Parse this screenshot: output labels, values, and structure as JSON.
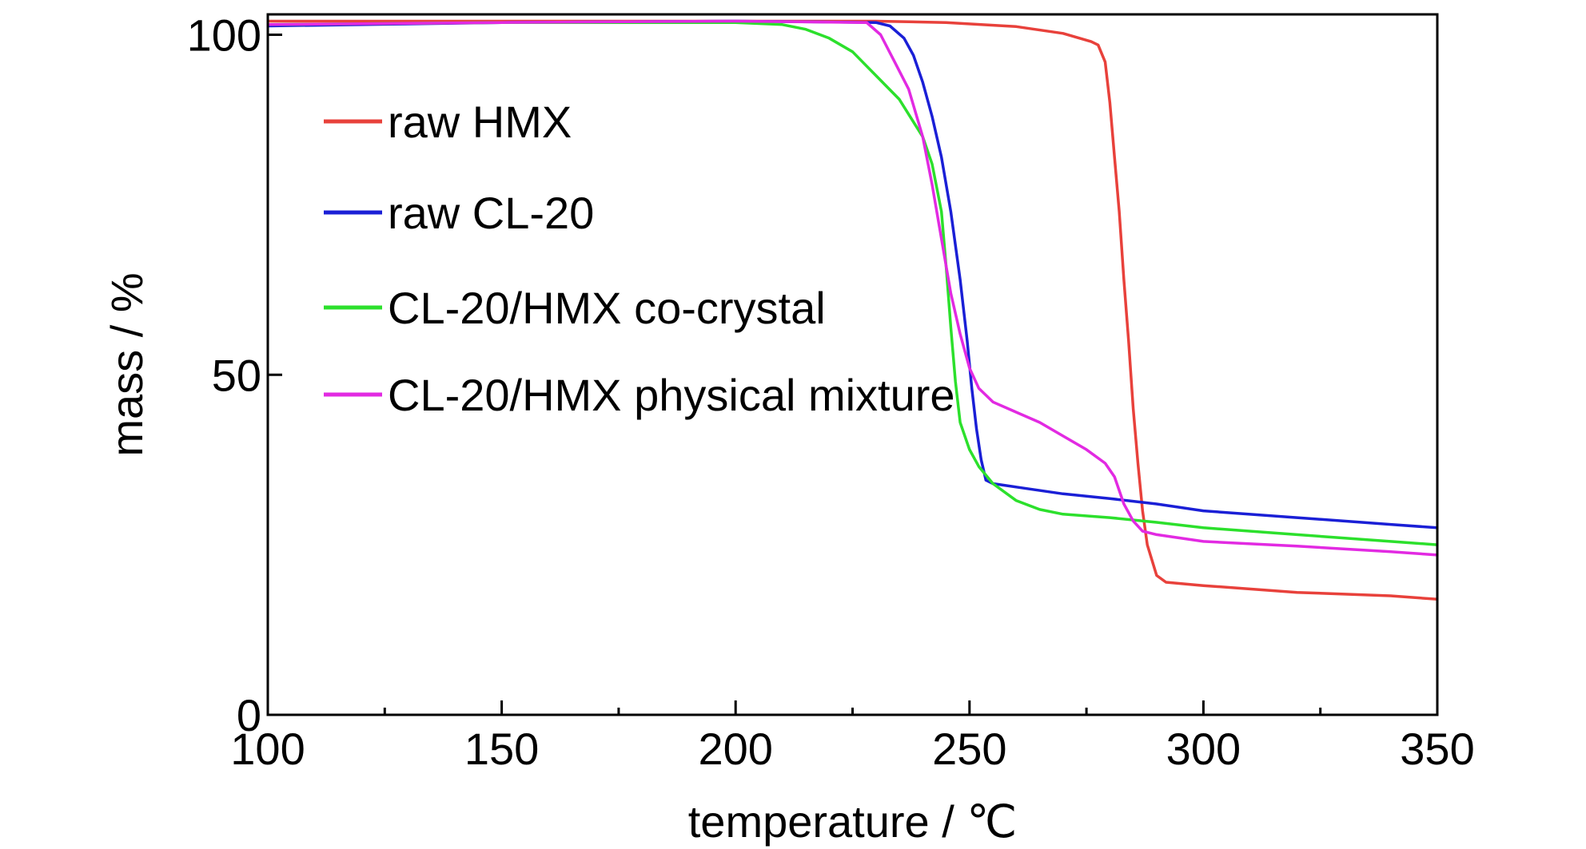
{
  "chart_data": {
    "type": "line",
    "xlabel": "temperature / ℃",
    "ylabel": "mass / %",
    "xlim": [
      100,
      350
    ],
    "ylim": [
      0,
      103
    ],
    "x_ticks": [
      100,
      150,
      200,
      250,
      300,
      350
    ],
    "x_minor_ticks": [
      125,
      175,
      225,
      275,
      325
    ],
    "y_ticks": [
      0,
      50,
      100
    ],
    "grid": false,
    "legend_position": "upper-left",
    "series": [
      {
        "name": "raw HMX",
        "color": "#e8413b",
        "points": [
          [
            100,
            102
          ],
          [
            150,
            102
          ],
          [
            200,
            102
          ],
          [
            230,
            102
          ],
          [
            245,
            101.8
          ],
          [
            260,
            101.2
          ],
          [
            270,
            100.2
          ],
          [
            276,
            99
          ],
          [
            277.5,
            98.5
          ],
          [
            279,
            96
          ],
          [
            280,
            90
          ],
          [
            281,
            82
          ],
          [
            282,
            74
          ],
          [
            283,
            64
          ],
          [
            284,
            55
          ],
          [
            285,
            45
          ],
          [
            286,
            37
          ],
          [
            287,
            30
          ],
          [
            288,
            25
          ],
          [
            290,
            20.5
          ],
          [
            292,
            19.5
          ],
          [
            300,
            19
          ],
          [
            320,
            18
          ],
          [
            340,
            17.5
          ],
          [
            350,
            17
          ]
        ]
      },
      {
        "name": "raw CL-20",
        "color": "#1a1fd6",
        "points": [
          [
            100,
            101.3
          ],
          [
            150,
            101.8
          ],
          [
            200,
            102
          ],
          [
            230,
            101.8
          ],
          [
            233,
            101.3
          ],
          [
            236,
            99.5
          ],
          [
            238,
            97
          ],
          [
            240,
            93
          ],
          [
            242,
            88
          ],
          [
            244,
            82
          ],
          [
            246,
            74
          ],
          [
            248,
            64
          ],
          [
            249.5,
            55
          ],
          [
            250.5,
            48
          ],
          [
            251.5,
            42
          ],
          [
            252.5,
            37.5
          ],
          [
            253.5,
            34.5
          ],
          [
            255,
            34
          ],
          [
            260,
            33.5
          ],
          [
            270,
            32.5
          ],
          [
            280,
            31.8
          ],
          [
            290,
            31
          ],
          [
            300,
            30
          ],
          [
            320,
            29
          ],
          [
            340,
            28
          ],
          [
            350,
            27.5
          ]
        ]
      },
      {
        "name": "CL-20/HMX co-crystal",
        "color": "#2ce02c",
        "points": [
          [
            100,
            101.5
          ],
          [
            150,
            101.8
          ],
          [
            200,
            101.8
          ],
          [
            210,
            101.5
          ],
          [
            215,
            100.8
          ],
          [
            220,
            99.5
          ],
          [
            225,
            97.5
          ],
          [
            230,
            94
          ],
          [
            235,
            90.5
          ],
          [
            240,
            85
          ],
          [
            242,
            81
          ],
          [
            244,
            74
          ],
          [
            245,
            66
          ],
          [
            246,
            57
          ],
          [
            247,
            49
          ],
          [
            248,
            43
          ],
          [
            250,
            39
          ],
          [
            252,
            36.5
          ],
          [
            255,
            34
          ],
          [
            260,
            31.5
          ],
          [
            265,
            30.2
          ],
          [
            270,
            29.5
          ],
          [
            280,
            29
          ],
          [
            290,
            28.3
          ],
          [
            300,
            27.5
          ],
          [
            320,
            26.5
          ],
          [
            340,
            25.5
          ],
          [
            350,
            25
          ]
        ]
      },
      {
        "name": "CL-20/HMX physical mixture",
        "color": "#e22ae2",
        "points": [
          [
            100,
            101.5
          ],
          [
            150,
            101.8
          ],
          [
            200,
            102
          ],
          [
            228,
            101.8
          ],
          [
            231,
            100
          ],
          [
            234,
            96
          ],
          [
            237,
            92
          ],
          [
            240,
            85
          ],
          [
            242,
            78
          ],
          [
            244,
            70
          ],
          [
            246,
            62
          ],
          [
            248,
            56
          ],
          [
            250,
            51
          ],
          [
            252,
            48
          ],
          [
            255,
            46
          ],
          [
            260,
            44.5
          ],
          [
            265,
            43
          ],
          [
            270,
            41
          ],
          [
            275,
            39
          ],
          [
            279,
            37
          ],
          [
            281,
            35
          ],
          [
            283,
            31
          ],
          [
            285,
            28.5
          ],
          [
            287,
            27
          ],
          [
            290,
            26.5
          ],
          [
            300,
            25.5
          ],
          [
            320,
            24.8
          ],
          [
            340,
            24
          ],
          [
            350,
            23.5
          ]
        ]
      }
    ]
  }
}
